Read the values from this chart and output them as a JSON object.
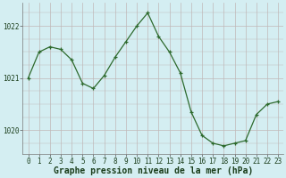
{
  "x": [
    0,
    1,
    2,
    3,
    4,
    5,
    6,
    7,
    8,
    9,
    10,
    11,
    12,
    13,
    14,
    15,
    16,
    17,
    18,
    19,
    20,
    21,
    22,
    23
  ],
  "y": [
    1021.0,
    1021.5,
    1021.6,
    1021.55,
    1021.35,
    1020.9,
    1020.8,
    1021.05,
    1021.4,
    1021.7,
    1022.0,
    1022.25,
    1021.8,
    1021.5,
    1021.1,
    1020.35,
    1019.9,
    1019.75,
    1019.7,
    1019.75,
    1019.8,
    1020.3,
    1020.5,
    1020.55
  ],
  "line_color": "#2d6a2d",
  "marker": "+",
  "bg_color": "#d4eef2",
  "grid_color": "#c0b8b8",
  "xlabel": "Graphe pression niveau de la mer (hPa)",
  "ylim": [
    1019.55,
    1022.45
  ],
  "yticks": [
    1020,
    1021,
    1022
  ],
  "xticks": [
    0,
    1,
    2,
    3,
    4,
    5,
    6,
    7,
    8,
    9,
    10,
    11,
    12,
    13,
    14,
    15,
    16,
    17,
    18,
    19,
    20,
    21,
    22,
    23
  ],
  "tick_label_size": 5.5,
  "xlabel_fontsize": 7,
  "xlabel_fontweight": "bold"
}
